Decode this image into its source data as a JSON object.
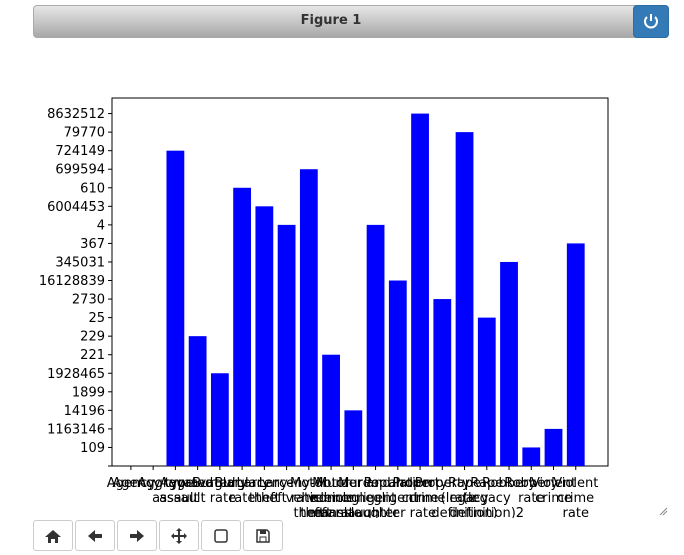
{
  "window": {
    "title": "Figure 1"
  },
  "chart_data": {
    "type": "bar",
    "color": "#0000ff",
    "categories": [
      "Agency",
      "Agency type",
      "Aggravated\nassault",
      "Aggravated\nassault rate",
      "Burglary",
      "Burglary\nrate",
      "Larceny-\ntheft",
      "Larceny-\ntheft rate",
      "Motor\nvehicle\ntheft",
      "Motor\nvehicle\ntheft rate",
      "Murder and\nnonnegligent\nmanslaughter",
      "Murder and\nnonnegligent\nmanslaughter rate",
      "Population",
      "Property\ncrime",
      "Property\ncrime rate",
      "Rape\n(legacy\ndefinition)",
      "Rape\n(legacy\ndefinition)2",
      "Robbery",
      "Robbery\nrate",
      "Violent\ncrime",
      "Violent\ncrime\nrate"
    ],
    "ycategories": [
      null,
      "109",
      "1163146",
      "14196",
      "1899",
      "1928465",
      "221",
      "229",
      "25",
      "2730",
      "16128839",
      "345031",
      "367",
      "4",
      "6004453",
      "610",
      "699594",
      "724149",
      "79770",
      "8632512"
    ],
    "values": [
      null,
      null,
      "724149",
      "229",
      "1928465",
      "610",
      "6004453",
      "4",
      "699594",
      "221",
      "14196",
      "4",
      "16128839",
      "8632512",
      "2730",
      "79770",
      "25",
      "345031",
      "109",
      "1163146",
      "367"
    ]
  }
}
